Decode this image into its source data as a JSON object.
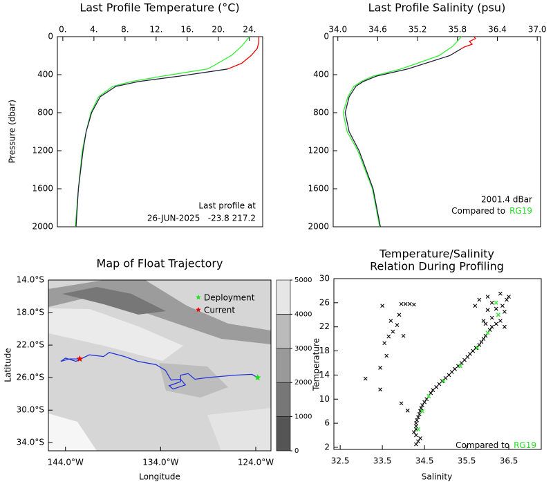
{
  "chart_data": [
    {
      "type": "line",
      "title": "Last Profile Temperature (°C)",
      "ylabel": "Pressure (dbar)",
      "xaxis_position": "top",
      "yreverse": true,
      "xlim": [
        -0.7,
        25.7
      ],
      "ylim": [
        0,
        2000
      ],
      "xticks": [
        {
          "value": 0,
          "label": "0."
        },
        {
          "value": 4,
          "label": "4."
        },
        {
          "value": 8,
          "label": "8."
        },
        {
          "value": 12,
          "label": "12."
        },
        {
          "value": 16,
          "label": "16."
        },
        {
          "value": 20,
          "label": "20."
        },
        {
          "value": 24,
          "label": "24."
        }
      ],
      "yticks": [
        0,
        400,
        800,
        1200,
        1600,
        2000
      ],
      "series": [
        {
          "color": "#33ee33",
          "x": [
            24.0,
            23.0,
            21.7,
            19.5,
            18.6,
            12.8,
            8.8,
            6.4,
            4.6,
            3.6,
            3.0,
            2.5,
            2.0,
            1.6
          ],
          "y": [
            0,
            100,
            196,
            300,
            340,
            415,
            473,
            524,
            633,
            800,
            1000,
            1200,
            1600,
            2000
          ]
        },
        {
          "color": "#20203a",
          "x": [
            21.2,
            15.0,
            9.7,
            6.8,
            4.8,
            3.7,
            3.0,
            2.6,
            2.0,
            1.7
          ],
          "y": [
            340,
            415,
            473,
            524,
            633,
            800,
            1000,
            1200,
            1600,
            2000
          ]
        },
        {
          "color": "#ee0000",
          "x": [
            25.2,
            25.2,
            25.0,
            24.2,
            23.0,
            21.2
          ],
          "y": [
            0,
            60,
            125,
            200,
            280,
            340
          ]
        }
      ],
      "annotation": [
        "Last profile at",
        "26-JUN-2025   -23.8 217.2"
      ]
    },
    {
      "type": "line",
      "title": "Last Profile Salinity (psu)",
      "xaxis_position": "top",
      "yreverse": true,
      "xlim": [
        33.93,
        37.05
      ],
      "ylim": [
        0,
        2000
      ],
      "xticks": [
        {
          "value": 34.0,
          "label": "34.0"
        },
        34.6,
        35.2,
        35.8,
        36.4,
        {
          "value": 37.0,
          "label": "37.0"
        }
      ],
      "yticks": [
        0,
        400,
        800,
        1200,
        1600,
        2000
      ],
      "series": [
        {
          "color": "#33ee33",
          "x": [
            35.86,
            35.73,
            35.52,
            34.95,
            34.53,
            34.35,
            34.24,
            34.15,
            34.08,
            34.14,
            34.3,
            34.52,
            34.63
          ],
          "y": [
            0,
            100,
            200,
            340,
            415,
            473,
            524,
            633,
            800,
            1000,
            1200,
            1600,
            2000
          ]
        },
        {
          "color": "#20203a",
          "x": [
            35.85,
            35.68,
            35.05,
            34.58,
            34.38,
            34.27,
            34.17,
            34.11,
            34.17,
            34.32,
            34.53,
            34.64
          ],
          "y": [
            130,
            200,
            340,
            415,
            473,
            524,
            633,
            800,
            1000,
            1200,
            1600,
            2000
          ]
        },
        {
          "color": "#ee0000",
          "x": [
            36.05,
            36.07,
            35.98,
            36.02,
            35.9,
            35.85
          ],
          "y": [
            0,
            20,
            50,
            80,
            110,
            130
          ]
        }
      ],
      "annotation": [
        "2001.4 dBar"
      ],
      "comparison": {
        "text": "Compared to",
        "reference": "RG19",
        "reference_color": "#22dd22"
      }
    },
    {
      "type": "map",
      "title": "Map of Float Trajectory",
      "xlabel": "Longitude",
      "ylabel": "Latitude",
      "xlim": [
        -145.8,
        -122.4
      ],
      "ylim": [
        -35.0,
        -14.0
      ],
      "xticks": [
        {
          "value": -144,
          "label": "144.0°W"
        },
        {
          "value": -134,
          "label": "134.0°W"
        },
        {
          "value": -124,
          "label": "124.0°W"
        }
      ],
      "yticks": [
        {
          "value": -14,
          "label": "14.0°S"
        },
        {
          "value": -18,
          "label": "18.0°S"
        },
        {
          "value": -22,
          "label": "22.0°S"
        },
        {
          "value": -26,
          "label": "26.0°S"
        },
        {
          "value": -30,
          "label": "30.0°S"
        },
        {
          "value": -34,
          "label": "34.0°S"
        }
      ],
      "track": {
        "color": "#2233dd",
        "lon": [
          -123.8,
          -124.4,
          -126.2,
          -129.1,
          -130.4,
          -131.1,
          -131.9,
          -131.9,
          -133.1,
          -132.7,
          -131.4,
          -131.9,
          -132.9,
          -133.5,
          -134.5,
          -136.4,
          -137.8,
          -139.4,
          -140.0,
          -141.5,
          -142.9,
          -144.0,
          -144.5,
          -143.6,
          -142.5
        ],
        "lat": [
          -26.0,
          -25.6,
          -25.7,
          -26.0,
          -26.2,
          -25.5,
          -25.7,
          -26.5,
          -27.0,
          -27.4,
          -26.9,
          -26.2,
          -26.3,
          -25.1,
          -24.4,
          -24.0,
          -23.4,
          -22.9,
          -23.4,
          -23.2,
          -24.0,
          -23.6,
          -24.0,
          -23.7,
          -23.7
        ]
      },
      "deployment": {
        "name": "Deployment",
        "color": "#22dd22",
        "lon": -123.8,
        "lat": -26.0
      },
      "current": {
        "name": "Current",
        "color": "#ee0000",
        "lon": -142.5,
        "lat": -23.7
      },
      "colorbar": {
        "levels": [
          0,
          1000,
          2000,
          3000,
          4000,
          5000
        ],
        "colors": [
          "#555555",
          "#777777",
          "#999999",
          "#bbbbbb",
          "#e6e6e6"
        ]
      }
    },
    {
      "type": "scatter",
      "title": [
        "Temperature/Salinity",
        "Relation During Profiling"
      ],
      "xlabel": "Salinity",
      "ylabel": "Temperature",
      "xlim": [
        32.35,
        37.27
      ],
      "ylim": [
        1.65,
        30
      ],
      "xticks": [
        32.5,
        33.5,
        34.5,
        35.5,
        36.5
      ],
      "yticks": [
        2,
        6,
        10,
        14,
        18,
        22,
        26,
        30
      ],
      "series": [
        {
          "color": "#000000",
          "x": [
            34.3,
            34.35,
            34.4,
            34.3,
            34.25,
            34.3,
            34.3,
            34.3,
            34.32,
            34.35,
            34.38,
            34.4,
            34.42,
            34.45,
            34.5,
            34.55,
            34.6,
            34.65,
            34.7,
            34.78,
            34.85,
            34.92,
            35.0,
            35.08,
            35.15,
            35.22,
            35.3,
            35.38,
            35.45,
            35.52,
            35.58,
            35.65,
            35.72,
            35.8,
            35.85,
            35.9,
            35.95,
            36.0,
            36.05,
            36.1,
            36.2,
            36.3,
            36.1,
            36.25,
            36.4,
            36.0,
            36.2,
            36.35,
            36.1,
            36.45,
            35.8,
            36.0,
            36.3,
            36.5,
            35.7,
            35.9,
            36.4,
            35.95,
            33.1,
            33.5,
            33.6,
            33.55,
            33.7,
            33.75,
            33.85,
            33.9,
            33.95,
            34.05,
            34.15,
            34.25,
            33.45,
            33.45,
            33.95,
            34.1,
            34.0,
            33.65
          ],
          "values": [
            2.5,
            3,
            3.5,
            4,
            4.5,
            5,
            5.5,
            6,
            6.5,
            7,
            7.5,
            8,
            8.5,
            9,
            9.5,
            10,
            10.5,
            11,
            11.5,
            12,
            12.5,
            13,
            13.5,
            14,
            14.5,
            15,
            15.5,
            16,
            16.5,
            17,
            17.5,
            18,
            18.5,
            19,
            19.5,
            20,
            20.5,
            21,
            21.5,
            22,
            22.5,
            23,
            23.5,
            24,
            24.5,
            24.8,
            25,
            25.5,
            26,
            26.5,
            26.5,
            27,
            27.5,
            27,
            25.5,
            23,
            22,
            22.5,
            13.4,
            25.5,
            17.2,
            19.3,
            23,
            21.2,
            22.3,
            24,
            25.8,
            25.8,
            25.8,
            25.7,
            15.2,
            11.6,
            9.3,
            8.1,
            20.5,
            20.4
          ]
        },
        {
          "color": "#33ee33",
          "x": [
            34.35,
            34.45,
            34.6,
            34.95,
            35.35,
            35.75,
            36.0,
            36.25,
            36.2
          ],
          "values": [
            5,
            8,
            10.5,
            13,
            15.5,
            18.5,
            21,
            24,
            26
          ]
        }
      ],
      "comparison": {
        "text": "Compared to",
        "reference": "RG19",
        "reference_color": "#22dd22"
      }
    }
  ]
}
